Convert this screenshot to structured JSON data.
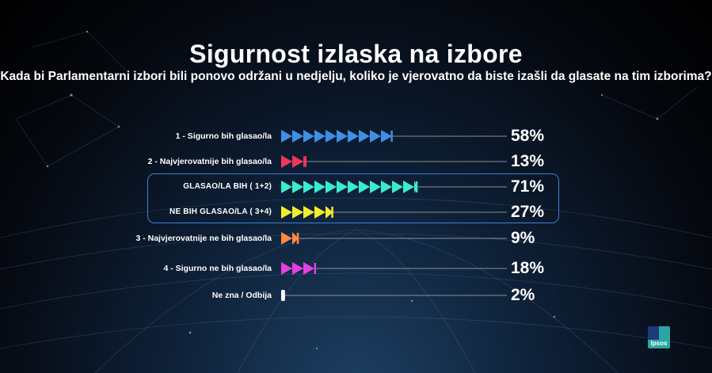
{
  "header": {
    "title": "Sigurnost izlaska na izbore",
    "subtitle": "Kada bi Parlamentarni izbori bili ponovo održani u nedjelju, koliko je vjerovatno da biste izašli da glasate na tim izborima?"
  },
  "chart_data": {
    "type": "bar",
    "categories": [
      "1 - Sigurno bih glasao/la",
      "2 - Najvjerovatnije bih glasao/la",
      "GLASAO/LA BIH ( 1+2)",
      "NE BIH GLASAO/LA ( 3+4)",
      "3 - Najvjerovatnije ne bih glasao/la",
      "4 - Sigurno ne bih glasao/la",
      "Ne zna / Odbija"
    ],
    "values": [
      58,
      13,
      71,
      27,
      9,
      18,
      2
    ],
    "value_labels": [
      "58%",
      "13%",
      "71%",
      "27%",
      "9%",
      "18%",
      "2%"
    ],
    "colors": [
      "#3f8fe6",
      "#f0365f",
      "#38ecd0",
      "#f2ec2e",
      "#ff8a3d",
      "#e53ee2",
      "#ffffff"
    ],
    "highlighted_categories": [
      "GLASAO/LA BIH ( 1+2)",
      "NE BIH GLASAO/LA ( 3+4)"
    ],
    "xlim": [
      0,
      100
    ],
    "grid": false,
    "legend": "none"
  },
  "branding": {
    "logo_text": "Ipsos",
    "logo_colors": [
      "#2aa7a0",
      "#1b3a78"
    ]
  }
}
